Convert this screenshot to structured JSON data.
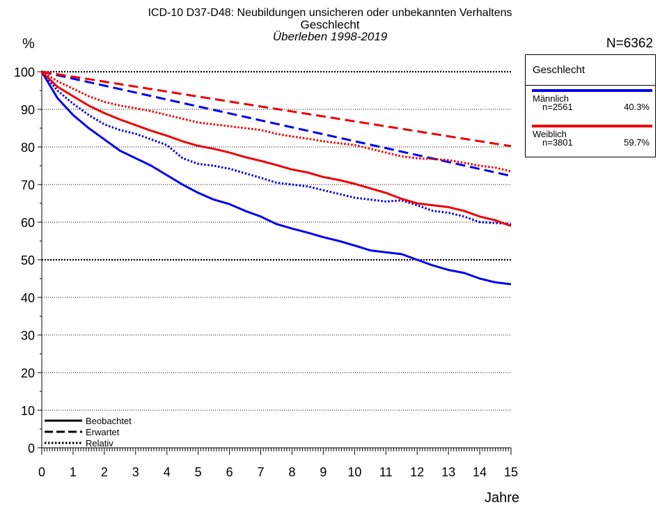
{
  "header": {
    "title": "ICD-10 D37-D48: Neubildungen unsicheren oder unbekannten Verhaltens",
    "subtitle": "Geschlecht",
    "period": "Überleben 1998-2019",
    "total_n": "N=6362"
  },
  "axes": {
    "y_unit": "%",
    "x_label": "Jahre"
  },
  "legend_box": {
    "title": "Geschlecht",
    "entries": [
      {
        "name": "Männlich",
        "n": "n=2561",
        "pct": "40.3%",
        "color": "#0000ee"
      },
      {
        "name": "Weiblich",
        "n": "n=3801",
        "pct": "59.7%",
        "color": "#ee0000"
      }
    ]
  },
  "line_legend": {
    "observed": "Beobachtet",
    "expected": "Erwartet",
    "relative": "Relativ"
  },
  "chart_data": {
    "type": "line",
    "xlim": [
      0,
      15
    ],
    "ylim": [
      0,
      100
    ],
    "x_ticks": [
      0,
      1,
      2,
      3,
      4,
      5,
      6,
      7,
      8,
      9,
      10,
      11,
      12,
      13,
      14,
      15
    ],
    "y_ticks": [
      0,
      10,
      20,
      30,
      40,
      50,
      60,
      70,
      80,
      90,
      100
    ],
    "x_tick_labels": [
      "0",
      "1",
      "2",
      "3",
      "4",
      "5",
      "6",
      "7",
      "8",
      "9",
      "10",
      "11",
      "12",
      "13",
      "14",
      "15"
    ],
    "y_tick_labels": [
      "0",
      "10",
      "20",
      "30",
      "40",
      "50",
      "60",
      "70",
      "80",
      "90",
      "100"
    ],
    "grid": "horizontal dotted",
    "series": [
      {
        "name": "Männlich",
        "kind": "Beobachtet",
        "color": "#0000ee",
        "dash": "solid",
        "x": [
          0,
          0.5,
          1,
          1.5,
          2,
          2.5,
          3,
          3.5,
          4,
          4.5,
          5,
          5.5,
          6,
          6.5,
          7,
          7.5,
          8,
          8.5,
          9,
          9.5,
          10,
          10.5,
          11,
          11.5,
          12,
          12.5,
          13,
          13.5,
          14,
          14.5,
          15
        ],
        "y": [
          100,
          93,
          88.5,
          85,
          82,
          79,
          77,
          75,
          72.5,
          70,
          67.8,
          66,
          64.8,
          63,
          61.5,
          59.5,
          58.3,
          57.2,
          56,
          55,
          53.8,
          52.5,
          52,
          51.5,
          50,
          48.5,
          47.3,
          46.5,
          45,
          44,
          43.5
        ]
      },
      {
        "name": "Weiblich",
        "kind": "Beobachtet",
        "color": "#ee0000",
        "dash": "solid",
        "x": [
          0,
          0.5,
          1,
          1.5,
          2,
          2.5,
          3,
          3.5,
          4,
          4.5,
          5,
          5.5,
          6,
          6.5,
          7,
          7.5,
          8,
          8.5,
          9,
          9.5,
          10,
          10.5,
          11,
          11.5,
          12,
          12.5,
          13,
          13.5,
          14,
          14.5,
          15
        ],
        "y": [
          100,
          96,
          93.5,
          91,
          89,
          87.3,
          85.8,
          84.3,
          83,
          81.5,
          80.3,
          79.5,
          78.5,
          77.3,
          76.3,
          75.2,
          74,
          73.2,
          72,
          71.2,
          70.2,
          69,
          67.8,
          66.2,
          65,
          64.5,
          64,
          63,
          61.5,
          60.5,
          59
        ]
      },
      {
        "name": "Männlich",
        "kind": "Erwartet",
        "color": "#0000ee",
        "dash": "dashed",
        "x": [
          0,
          15
        ],
        "y": [
          100,
          72.3
        ]
      },
      {
        "name": "Weiblich",
        "kind": "Erwartet",
        "color": "#ee0000",
        "dash": "dashed",
        "x": [
          0,
          15
        ],
        "y": [
          100,
          80.2
        ]
      },
      {
        "name": "Männlich",
        "kind": "Relativ",
        "color": "#0000ee",
        "dash": "dotted",
        "x": [
          0,
          0.5,
          1,
          1.5,
          2,
          2.5,
          3,
          3.5,
          4,
          4.5,
          5,
          5.5,
          6,
          6.5,
          7,
          7.5,
          8,
          8.5,
          9,
          9.5,
          10,
          10.5,
          11,
          11.5,
          12,
          12.5,
          13,
          13.5,
          14,
          14.5,
          15
        ],
        "y": [
          100,
          95,
          91.5,
          88.5,
          86,
          84.5,
          83.5,
          82,
          80.5,
          77,
          75.5,
          75,
          74.2,
          73,
          71.8,
          70.5,
          70,
          69.5,
          68.5,
          67.5,
          66.5,
          66,
          65.5,
          65.8,
          64.5,
          63,
          62.5,
          61.5,
          60,
          59.8,
          59.5
        ]
      },
      {
        "name": "Weiblich",
        "kind": "Relativ",
        "color": "#ee0000",
        "dash": "dotted",
        "x": [
          0,
          0.5,
          1,
          1.5,
          2,
          2.5,
          3,
          3.5,
          4,
          4.5,
          5,
          5.5,
          6,
          6.5,
          7,
          7.5,
          8,
          8.5,
          9,
          9.5,
          10,
          10.5,
          11,
          11.5,
          12,
          12.5,
          13,
          13.5,
          14,
          14.5,
          15
        ],
        "y": [
          100,
          97.5,
          95.5,
          93.5,
          92,
          91,
          90.3,
          89.5,
          88.5,
          87.5,
          86.5,
          86,
          85.5,
          85,
          84.5,
          83.5,
          82.8,
          82.2,
          81.5,
          81,
          80.5,
          79.5,
          78.5,
          77.5,
          77,
          76.8,
          76.5,
          75.8,
          75,
          74.5,
          73.5
        ]
      }
    ]
  }
}
